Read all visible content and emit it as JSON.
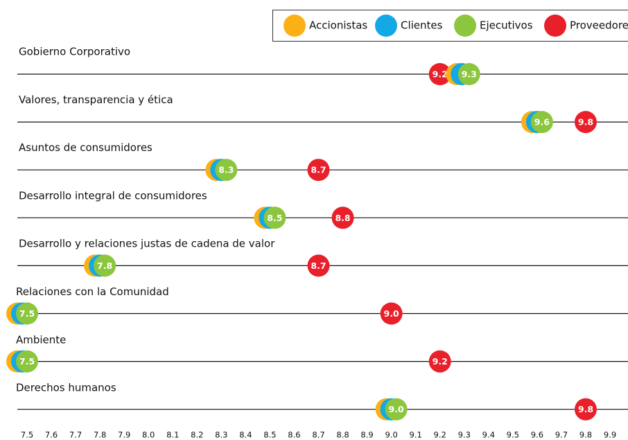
{
  "chart_data": {
    "type": "dot",
    "categories": [
      "Gobierno Corporativo",
      "Valores, transparencia y ética",
      "Asuntos de consumidores",
      "Desarrollo integral de consumidores",
      "Desarrollo y relaciones justas de cadena de valor",
      "Relaciones con la Comunidad",
      "Ambiente",
      "Derechos humanos"
    ],
    "series": [
      {
        "name": "Proveedores",
        "color": "#e8202a",
        "values": [
          9.2,
          9.8,
          8.7,
          8.8,
          8.7,
          9.0,
          9.2,
          9.8
        ],
        "value_labels": [
          "9.2",
          "9.8",
          "8.7",
          "8.8",
          "8.7",
          "9.0",
          "9.2",
          "9.8"
        ]
      },
      {
        "name": "Accionistas",
        "color": "#fbb016",
        "values": [
          9.27,
          9.58,
          8.28,
          8.48,
          7.78,
          7.46,
          7.46,
          8.98
        ]
      },
      {
        "name": "Clientes",
        "color": "#12a9e4",
        "values": [
          9.29,
          9.6,
          8.3,
          8.5,
          7.8,
          7.48,
          7.48,
          9.0
        ]
      },
      {
        "name": "Ejecutivos",
        "color": "#8cc63f",
        "values": [
          9.32,
          9.62,
          8.32,
          8.52,
          7.82,
          7.5,
          7.5,
          9.02
        ],
        "value_labels": [
          "9.3",
          "9.6",
          "8.3",
          "8.5",
          "7.8",
          "7.5",
          "7.5",
          "9.0"
        ]
      }
    ],
    "legend_order": [
      "Accionistas",
      "Clientes",
      "Ejecutivos",
      "Proveedores"
    ],
    "xlim": [
      7.5,
      9.9
    ],
    "xticks": [
      7.5,
      7.6,
      7.7,
      7.8,
      7.9,
      {
        "value": 8,
        "label": "8.0"
      },
      8.1,
      8.2,
      8.3,
      8.4,
      8.5,
      8.6,
      8.7,
      8.8,
      8.9,
      {
        "value": 9,
        "label": "9.0"
      },
      9.1,
      9.2,
      9.3,
      9.4,
      9.5,
      9.6,
      9.7,
      9.8,
      9.9
    ]
  }
}
